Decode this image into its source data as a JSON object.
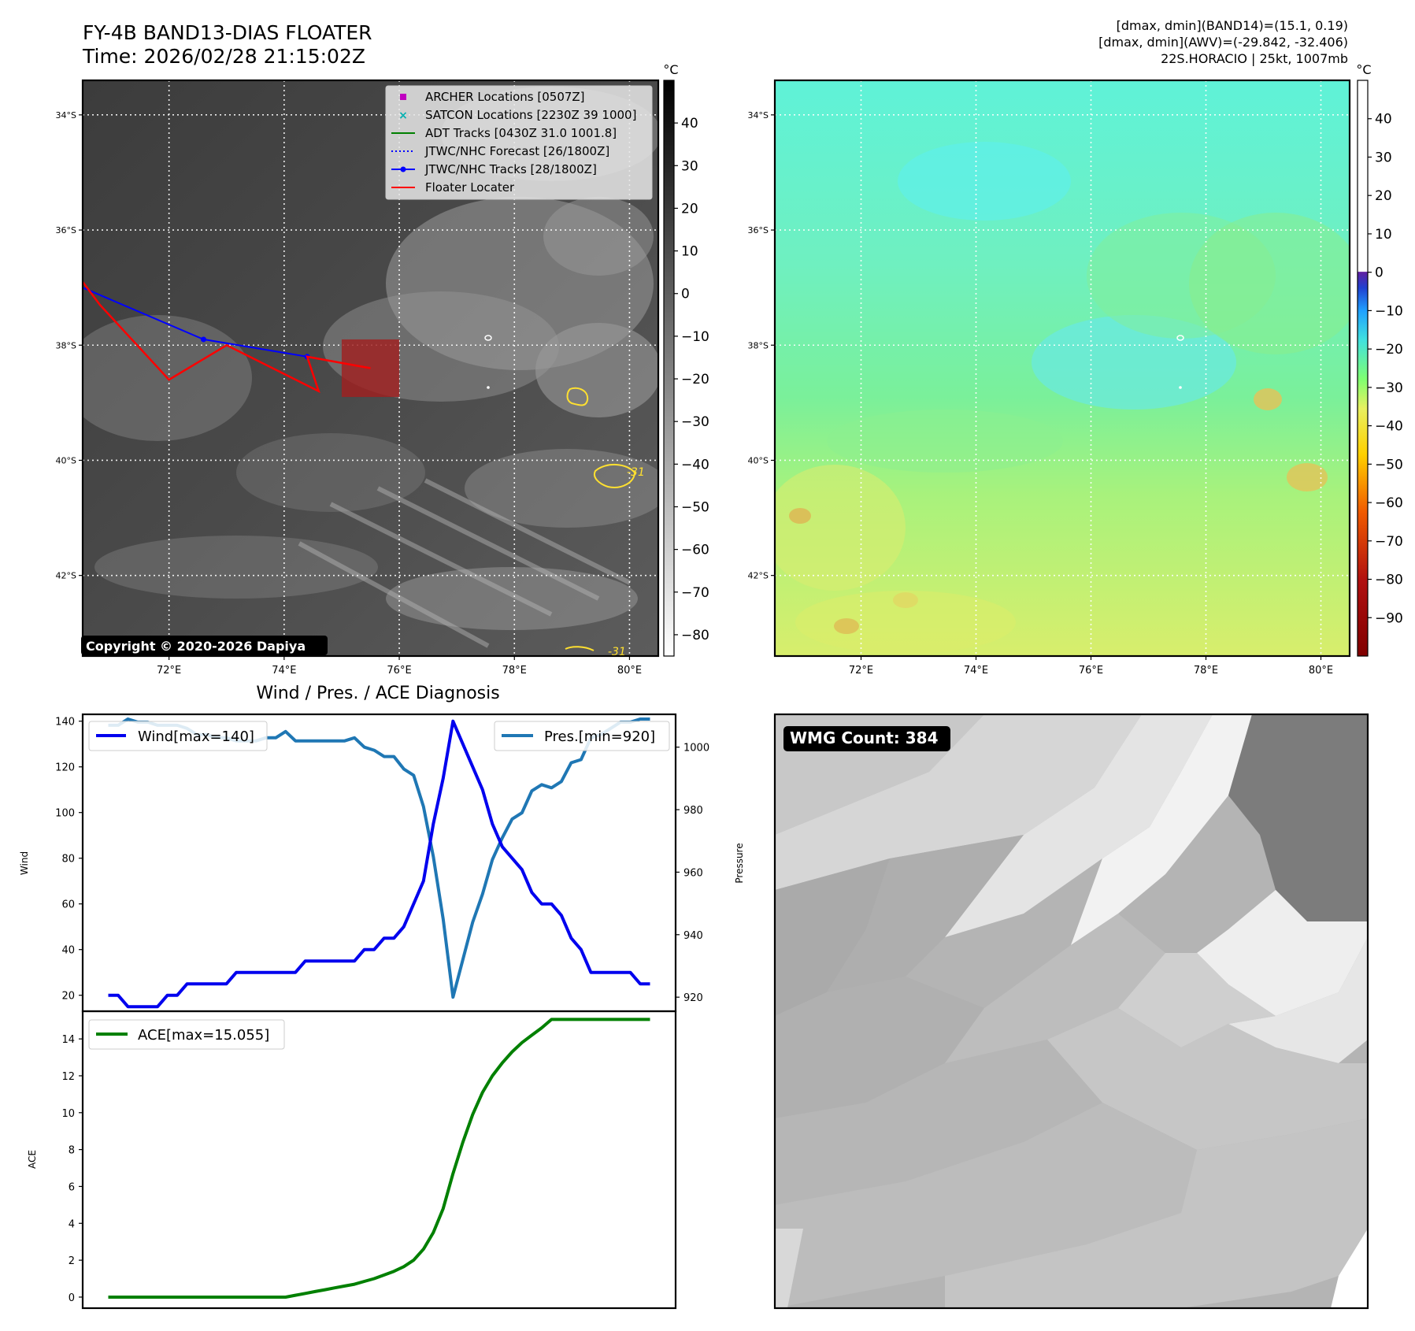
{
  "header": {
    "title_line1": "FY-4B BAND13-DIAS FLOATER",
    "title_line2": "Time: 2026/02/28 21:15:02Z",
    "info_line1": "[dmax, dmin](BAND14)=(15.1, 0.19)",
    "info_line2": "[dmax, dmin](AWV)=(-29.842, -32.406)",
    "info_line3": "22S.HORACIO | 25kt, 1007mb"
  },
  "map_axes": {
    "lat_labels": [
      "34°S",
      "36°S",
      "38°S",
      "40°S",
      "42°S"
    ],
    "lon_labels": [
      "72°E",
      "74°E",
      "76°E",
      "78°E",
      "80°E"
    ],
    "lat_values": [
      -34,
      -36,
      -38,
      -40,
      -42
    ],
    "lon_values": [
      72,
      74,
      76,
      78,
      80
    ],
    "lon_range": [
      70.5,
      80.5
    ],
    "lat_range": [
      -43.4,
      -33.4
    ]
  },
  "ir_panel": {
    "unit": "°C",
    "colorbar_ticks": [
      "40",
      "30",
      "20",
      "10",
      "0",
      "−10",
      "−20",
      "−30",
      "−40",
      "−50",
      "−60",
      "−70",
      "−80"
    ],
    "colorbar_values": [
      40,
      30,
      20,
      10,
      0,
      -10,
      -20,
      -30,
      -40,
      -50,
      -60,
      -70,
      -80
    ],
    "colorbar_range": [
      -85,
      50
    ],
    "copyright": "Copyright © 2020-2026 Dapiya",
    "contour_label": "-31",
    "legend": [
      {
        "label": "ARCHER Locations [0507Z]",
        "color": "#c000c0",
        "symbol": "square"
      },
      {
        "label": "SATCON Locations [2230Z 39 1000]",
        "color": "#00b0b0",
        "symbol": "x"
      },
      {
        "label": "ADT Tracks [0430Z 31.0 1001.8]",
        "color": "#008000",
        "symbol": "line"
      },
      {
        "label": "JTWC/NHC Forecast [26/1800Z]",
        "color": "#0000ff",
        "symbol": "dotted"
      },
      {
        "label": "JTWC/NHC Tracks [28/1800Z]",
        "color": "#0000ff",
        "symbol": "line-dot"
      },
      {
        "label": "Floater Locater",
        "color": "#ff0000",
        "symbol": "line"
      }
    ],
    "jtwc_track": [
      [
        70.5,
        -37.0
      ],
      [
        72.6,
        -37.9
      ],
      [
        74.4,
        -38.2
      ]
    ],
    "floater_path": [
      [
        70.5,
        -36.9
      ],
      [
        70.8,
        -37.3
      ],
      [
        72.0,
        -38.6
      ],
      [
        73.0,
        -38.0
      ],
      [
        74.6,
        -38.8
      ],
      [
        74.4,
        -38.2
      ],
      [
        75.5,
        -38.4
      ]
    ],
    "floater_box": {
      "lon": [
        75.0,
        76.0
      ],
      "lat": [
        -38.9,
        -37.9
      ],
      "color": "#a02020"
    }
  },
  "wv_panel": {
    "unit": "°C",
    "colorbar_ticks": [
      "40",
      "30",
      "20",
      "10",
      "0",
      "−10",
      "−20",
      "−30",
      "−40",
      "−50",
      "−60",
      "−70",
      "−80",
      "−90"
    ],
    "colorbar_values": [
      40,
      30,
      20,
      10,
      0,
      -10,
      -20,
      -30,
      -40,
      -50,
      -60,
      -70,
      -80,
      -90
    ],
    "colorbar_range": [
      -100,
      50
    ]
  },
  "diag_panel": {
    "title": "Wind / Pres. / ACE Diagnosis",
    "wind_axis_label": "Wind",
    "pres_axis_label": "Pressure",
    "ace_axis_label": "ACE",
    "wind_ticks": [
      20,
      40,
      60,
      80,
      100,
      120,
      140
    ],
    "pres_ticks": [
      920,
      940,
      960,
      980,
      1000
    ],
    "ace_ticks": [
      0,
      2,
      4,
      6,
      8,
      10,
      12,
      14
    ],
    "wind_legend": "Wind[max=140]",
    "pres_legend": "Pres.[min=920]",
    "ace_legend": "ACE[max=15.055]"
  },
  "wmg_panel": {
    "count_label": "WMG Count: 384"
  },
  "chart_data": [
    {
      "type": "line",
      "title": "Wind / Pres. / ACE Diagnosis",
      "xlabel": "",
      "ylabel": "Wind",
      "ylim": [
        13,
        143
      ],
      "y2label": "Pressure",
      "y2lim": [
        915.5,
        1010.5
      ],
      "x": [
        0,
        1,
        2,
        3,
        4,
        5,
        6,
        7,
        8,
        9,
        10,
        11,
        12,
        13,
        14,
        15,
        16,
        17,
        18,
        19,
        20,
        21,
        22,
        23,
        24,
        25,
        26,
        27,
        28,
        29,
        30,
        31,
        32,
        33,
        34,
        35,
        36,
        37,
        38,
        39,
        40,
        41,
        42,
        43,
        44,
        45,
        46,
        47,
        48,
        49,
        50,
        51,
        52,
        53,
        54,
        55
      ],
      "series": [
        {
          "name": "Wind[max=140]",
          "axis": "left",
          "color": "#0000ee",
          "values": [
            20,
            20,
            15,
            15,
            15,
            15,
            20,
            20,
            25,
            25,
            25,
            25,
            25,
            30,
            30,
            30,
            30,
            30,
            30,
            30,
            35,
            35,
            35,
            35,
            35,
            35,
            40,
            40,
            45,
            45,
            50,
            60,
            70,
            95,
            115,
            140,
            130,
            120,
            110,
            95,
            85,
            80,
            75,
            65,
            60,
            60,
            55,
            45,
            40,
            30,
            30,
            30,
            30,
            30,
            25,
            25
          ]
        },
        {
          "name": "Pres.[min=920]",
          "axis": "right",
          "color": "#1f77b4",
          "values": [
            1007,
            1007,
            1009,
            1008,
            1008,
            1007,
            1007,
            1007,
            1006,
            1004,
            1004,
            1003,
            1003,
            1002,
            1002,
            1002,
            1003,
            1003,
            1005,
            1002,
            1002,
            1002,
            1002,
            1002,
            1002,
            1003,
            1000,
            999,
            997,
            997,
            993,
            991,
            981,
            965,
            945,
            920,
            932,
            944,
            953,
            964,
            971,
            977,
            979,
            986,
            988,
            987,
            989,
            995,
            996,
            1003,
            1004,
            1006,
            1008,
            1008,
            1009,
            1009
          ]
        }
      ]
    },
    {
      "type": "line",
      "title": "",
      "xlabel": "",
      "ylabel": "ACE",
      "ylim": [
        -0.6,
        15.5
      ],
      "x": [
        0,
        1,
        2,
        3,
        4,
        5,
        6,
        7,
        8,
        9,
        10,
        11,
        12,
        13,
        14,
        15,
        16,
        17,
        18,
        19,
        20,
        21,
        22,
        23,
        24,
        25,
        26,
        27,
        28,
        29,
        30,
        31,
        32,
        33,
        34,
        35,
        36,
        37,
        38,
        39,
        40,
        41,
        42,
        43,
        44,
        45,
        46,
        47,
        48,
        49,
        50,
        51,
        52,
        53,
        54,
        55
      ],
      "series": [
        {
          "name": "ACE[max=15.055]",
          "color": "#008000",
          "values": [
            0,
            0,
            0,
            0,
            0,
            0,
            0,
            0,
            0,
            0,
            0,
            0,
            0,
            0,
            0,
            0,
            0,
            0,
            0,
            0.1,
            0.2,
            0.3,
            0.4,
            0.5,
            0.6,
            0.7,
            0.85,
            1.0,
            1.2,
            1.4,
            1.65,
            2.0,
            2.6,
            3.5,
            4.8,
            6.7,
            8.4,
            9.9,
            11.1,
            12.0,
            12.7,
            13.3,
            13.8,
            14.2,
            14.6,
            15.055,
            15.055,
            15.055,
            15.055,
            15.055,
            15.055,
            15.055,
            15.055,
            15.055,
            15.055,
            15.055
          ]
        }
      ]
    }
  ]
}
